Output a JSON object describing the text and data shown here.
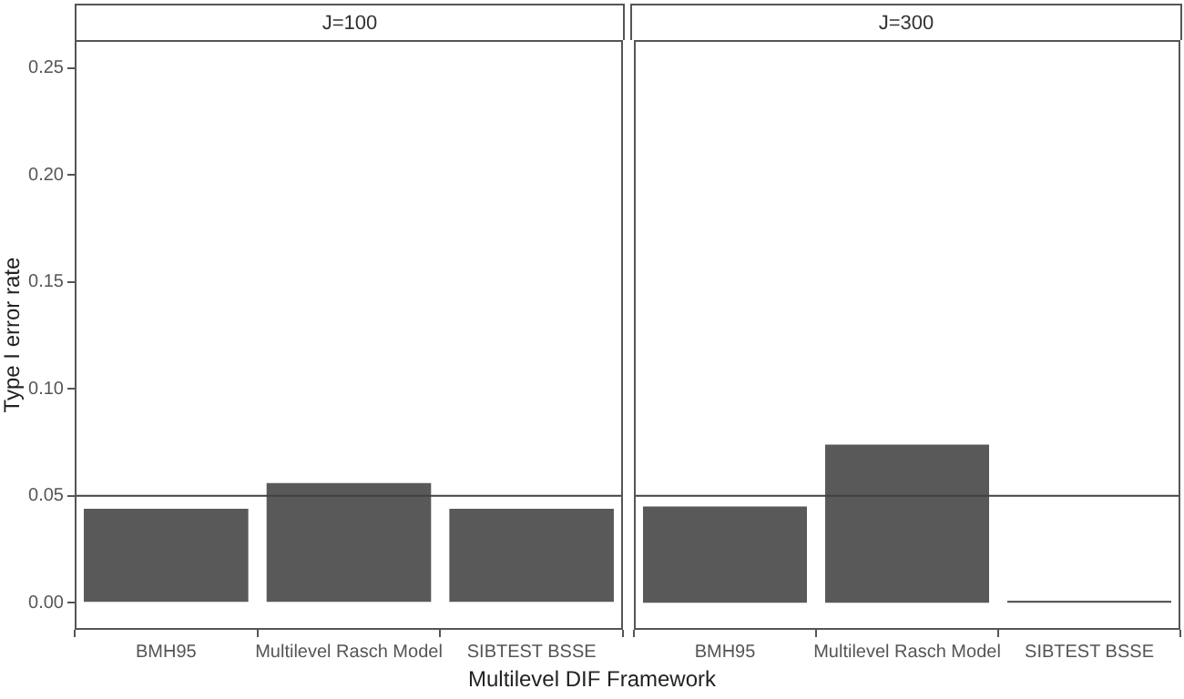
{
  "chart_data": [
    {
      "type": "bar",
      "title": "J=100",
      "ylabel": "Type I error rate",
      "xlabel": "Multilevel DIF Framework",
      "categories": [
        "BMH95",
        "Multilevel Rasch Model",
        "SIBTEST BSSE"
      ],
      "values": [
        0.044,
        0.056,
        0.044
      ],
      "color": "#595959",
      "ylim": [
        -0.0126,
        0.263
      ],
      "yticks": [
        {
          "value": 0,
          "label": "0.00"
        },
        {
          "value": 0.05,
          "label": "0.05"
        },
        {
          "value": 0.1,
          "label": "0.10"
        },
        {
          "value": 0.15,
          "label": "0.15"
        },
        {
          "value": 0.2,
          "label": "0.20"
        },
        {
          "value": 0.25,
          "label": "0.25"
        }
      ],
      "ref_lines": [
        {
          "axis": "y",
          "value": 0.05,
          "label": null,
          "color": "#404040"
        }
      ],
      "grid": false
    },
    {
      "type": "bar",
      "title": "J=300",
      "categories": [
        "BMH95",
        "Multilevel Rasch Model",
        "SIBTEST BSSE"
      ],
      "values": [
        0.045,
        0.074,
        0.001
      ],
      "color": "#595959",
      "ylim": [
        -0.0126,
        0.263
      ],
      "ref_lines": [
        {
          "axis": "y",
          "value": 0.05,
          "label": null,
          "color": "#404040"
        }
      ],
      "grid": false,
      "tick_labels": "x"
    }
  ]
}
